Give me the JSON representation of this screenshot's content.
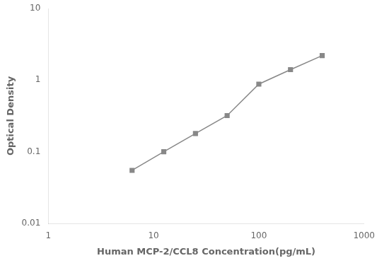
{
  "chart_data": {
    "type": "line",
    "x": [
      6.25,
      12.5,
      25,
      50,
      100,
      200,
      400
    ],
    "values": [
      0.055,
      0.1,
      0.18,
      0.32,
      0.88,
      1.4,
      2.2
    ],
    "xlabel": "Human MCP-2/CCL8 Concentration(pg/mL)",
    "ylabel": "Optical Density",
    "xlim": [
      1,
      1000
    ],
    "ylim": [
      0.01,
      10
    ],
    "xticks": [
      1,
      10,
      100,
      1000
    ],
    "yticks": [
      0.01,
      0.1,
      1,
      10
    ],
    "log": true,
    "grid": false,
    "color": "#888888",
    "marker": "square",
    "line_style": "solid"
  }
}
